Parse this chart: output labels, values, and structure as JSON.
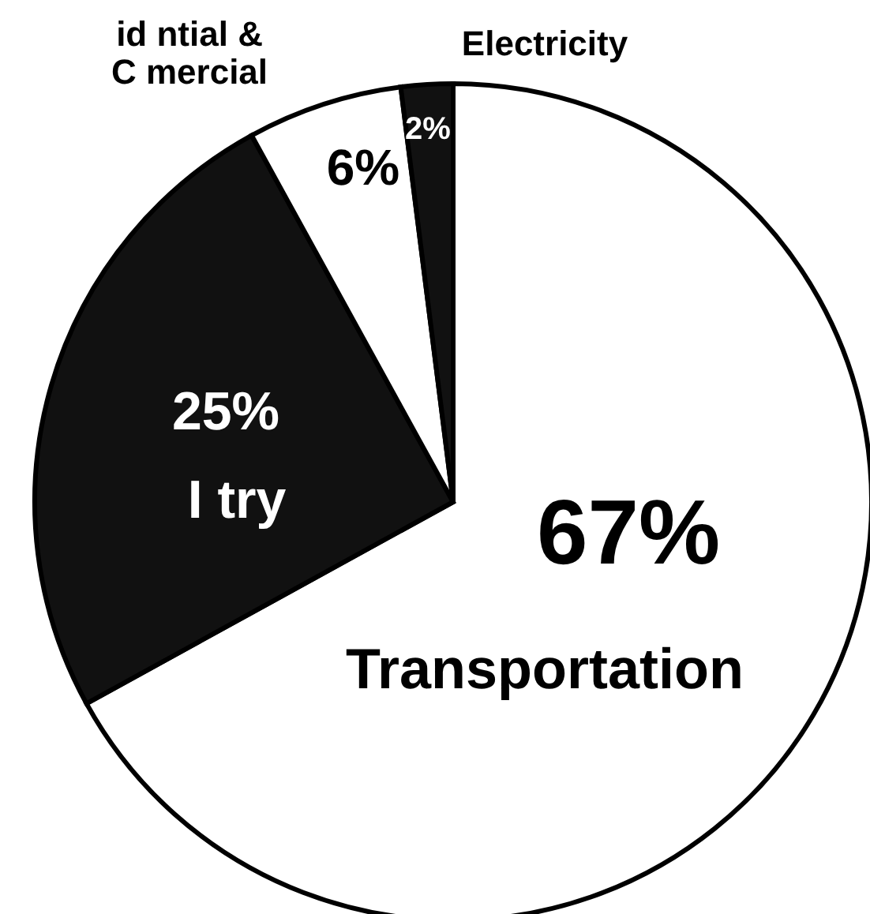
{
  "chart_data": {
    "type": "pie",
    "categories": [
      "Transportation",
      "I         try",
      "id  ntial &\nC        mercial",
      "Electricity"
    ],
    "values": [
      67,
      25,
      6,
      2
    ],
    "colors": [
      "#ffffff",
      "#111111",
      "#ffffff",
      "#111111"
    ],
    "value_labels": [
      "67%",
      "25%",
      "6%",
      "2%"
    ]
  }
}
